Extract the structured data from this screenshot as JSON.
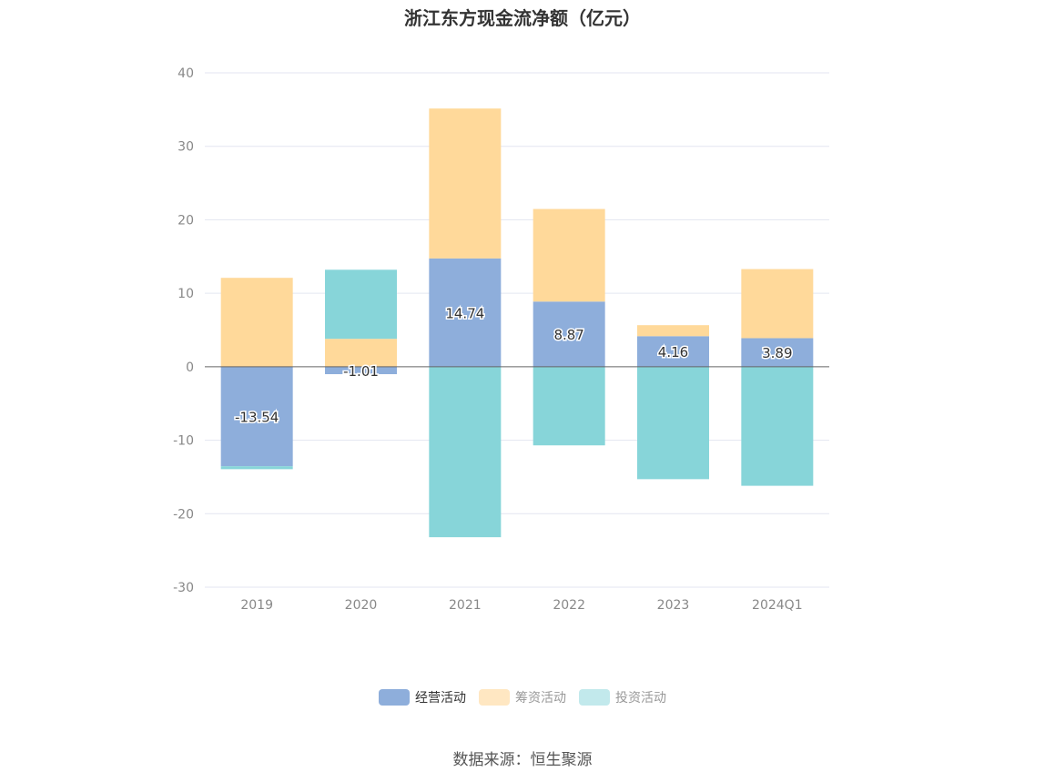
{
  "chart_data": {
    "type": "bar",
    "title": "浙江东方现金流净额（亿元）",
    "xlabel": "",
    "ylabel": "",
    "categories": [
      "2019",
      "2020",
      "2021",
      "2022",
      "2023",
      "2024Q1"
    ],
    "ylim": [
      -30,
      40
    ],
    "yticks": [
      -30,
      -20,
      -10,
      0,
      10,
      20,
      30,
      40
    ],
    "stacked": true,
    "grid": true,
    "legend_position": "bottom",
    "series": [
      {
        "name": "经营活动",
        "color": "#8eaedb",
        "values": [
          -13.54,
          -1.01,
          14.74,
          8.87,
          4.16,
          3.89
        ],
        "data_labels": [
          "-13.54",
          "-1.01",
          "14.74",
          "8.87",
          "4.16",
          "3.89"
        ]
      },
      {
        "name": "筹资活动",
        "color": "#ffd99a",
        "values": [
          12.1,
          3.8,
          20.4,
          12.6,
          1.5,
          9.4
        ]
      },
      {
        "name": "投资活动",
        "color": "#87d5d9",
        "values": [
          -0.4,
          9.4,
          -23.2,
          -10.7,
          -15.3,
          -16.2
        ]
      }
    ]
  },
  "legend": {
    "items": [
      {
        "label": "经营活动",
        "color": "#8eaedb",
        "active": true
      },
      {
        "label": "筹资活动",
        "color": "#ffe7c2",
        "active": false
      },
      {
        "label": "投资活动",
        "color": "#c2e9ec",
        "active": false
      }
    ]
  },
  "source": "数据来源：恒生聚源"
}
